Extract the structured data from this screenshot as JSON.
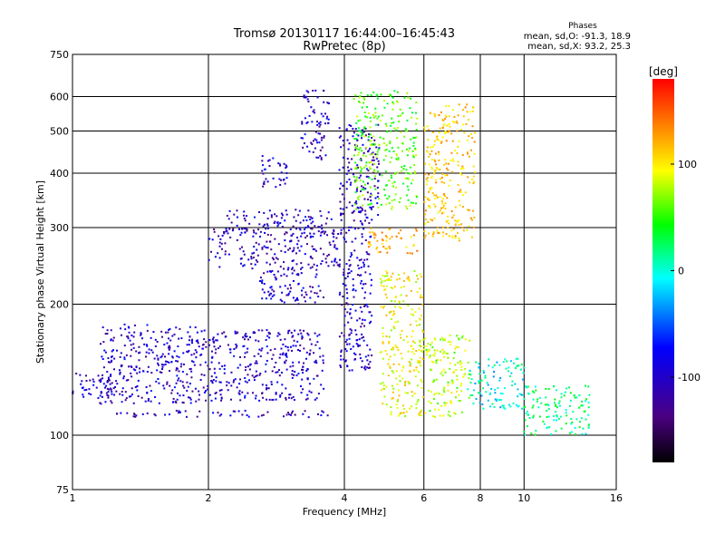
{
  "chart_data": {
    "type": "scatter",
    "title": "Tromsø 20130117 16:44:00–16:45:43",
    "subtitle": "RwPretec (8p)",
    "xlabel": "Frequency [MHz]",
    "ylabel": "Stationary phase Virtual Height [km]",
    "x_scale": "log",
    "y_scale": "log",
    "xlim": [
      1,
      16
    ],
    "ylim": [
      75,
      750
    ],
    "x_ticks": [
      1,
      2,
      4,
      6,
      8,
      10,
      16
    ],
    "y_ticks": [
      75,
      100,
      200,
      300,
      400,
      500,
      600,
      750
    ],
    "grid": true,
    "info_box": {
      "heading": "Phases",
      "line1": "mean, sd,O: -91.3, 18.9",
      "line2": "mean, sd,X:  93.2, 25.3"
    },
    "colorbar": {
      "label": "[deg]",
      "range": [
        -180,
        180
      ],
      "ticks": [
        100,
        0,
        -100
      ],
      "colors": [
        "#000000",
        "#4b0082",
        "#0000ff",
        "#00ffff",
        "#00ff00",
        "#ffff00",
        "#ff8000",
        "#ff0000"
      ]
    },
    "clusters": [
      {
        "x": [
          1.0,
          1.25
        ],
        "y": [
          120,
          140
        ],
        "phase": -100
      },
      {
        "x": [
          1.15,
          1.9
        ],
        "y": [
          118,
          180
        ],
        "phase": -100
      },
      {
        "x": [
          1.25,
          3.8
        ],
        "y": [
          110,
          114
        ],
        "phase": -105
      },
      {
        "x": [
          1.9,
          3.6
        ],
        "y": [
          120,
          175
        ],
        "phase": -100
      },
      {
        "x": [
          2.0,
          3.9
        ],
        "y": [
          240,
          300
        ],
        "phase": -105
      },
      {
        "x": [
          2.2,
          3.8
        ],
        "y": [
          300,
          330
        ],
        "phase": -100
      },
      {
        "x": [
          2.6,
          3.6
        ],
        "y": [
          200,
          240
        ],
        "phase": -100
      },
      {
        "x": [
          2.6,
          3.0
        ],
        "y": [
          370,
          440
        ],
        "phase": -100
      },
      {
        "x": [
          3.2,
          3.7
        ],
        "y": [
          430,
          620
        ],
        "phase": -100
      },
      {
        "x": [
          3.9,
          4.6
        ],
        "y": [
          140,
          330
        ],
        "phase": -100
      },
      {
        "x": [
          3.9,
          4.8
        ],
        "y": [
          320,
          520
        ],
        "phase": -100
      },
      {
        "x": [
          4.5,
          5.8
        ],
        "y": [
          260,
          300
        ],
        "phase": 110
      },
      {
        "x": [
          4.2,
          5.8
        ],
        "y": [
          330,
          620
        ],
        "phase": 40
      },
      {
        "x": [
          4.8,
          6.0
        ],
        "y": [
          110,
          240
        ],
        "phase": 80
      },
      {
        "x": [
          6.0,
          7.8
        ],
        "y": [
          280,
          580
        ],
        "phase": 100
      },
      {
        "x": [
          6.0,
          7.6
        ],
        "y": [
          110,
          170
        ],
        "phase": 60
      },
      {
        "x": [
          7.5,
          10.0
        ],
        "y": [
          115,
          150
        ],
        "phase": -20
      },
      {
        "x": [
          10.0,
          14.0
        ],
        "y": [
          100,
          130
        ],
        "phase": 0
      }
    ]
  }
}
